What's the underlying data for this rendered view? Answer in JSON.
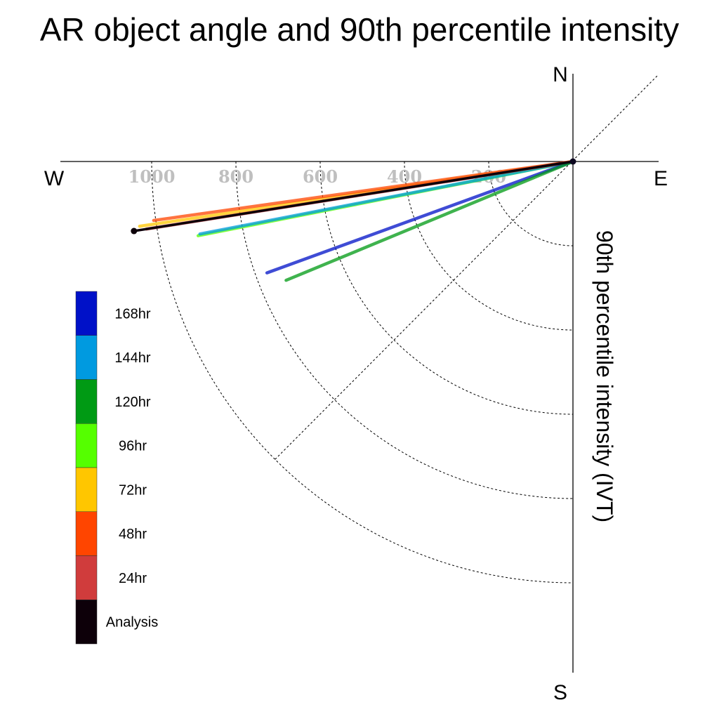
{
  "chart_data": {
    "type": "polar-vector",
    "title": "AR object angle and 90th percentile intensity",
    "ylabel": "90th percentile intensity (IVT)",
    "compass": {
      "north": "N",
      "south": "S",
      "east": "E",
      "west": "W"
    },
    "radial_ticks": [
      "200",
      "400",
      "600",
      "800",
      "1000"
    ],
    "rmax": 1000,
    "legend": [
      {
        "label": "168hr",
        "color": "#0011c8"
      },
      {
        "label": "144hr",
        "color": "#009ae0"
      },
      {
        "label": "120hr",
        "color": "#009a14"
      },
      {
        "label": "96hr",
        "color": "#55ff00"
      },
      {
        "label": "72hr",
        "color": "#ffc600"
      },
      {
        "label": "48hr",
        "color": "#ff4500"
      },
      {
        "label": "24hr",
        "color": "#d03c3c"
      },
      {
        "label": "Analysis",
        "color": "#0d0009"
      }
    ],
    "series": [
      {
        "name": "96hr",
        "color": "#55ff00",
        "angle_deg": 258.8,
        "value": 907
      },
      {
        "name": "144hr",
        "color": "#009ae0",
        "angle_deg": 259.0,
        "value": 902
      },
      {
        "name": "72hr",
        "color": "#ffc600",
        "angle_deg": 261.5,
        "value": 1040
      },
      {
        "name": "48hr",
        "color": "#ff4500",
        "angle_deg": 262.0,
        "value": 1005
      },
      {
        "name": "24hr",
        "color": "#d03c3c",
        "angle_deg": 261.0,
        "value": 1025
      },
      {
        "name": "168hr",
        "color": "#0011c8",
        "angle_deg": 250.0,
        "value": 773
      },
      {
        "name": "120hr",
        "color": "#009a14",
        "angle_deg": 247.5,
        "value": 737
      },
      {
        "name": "Analysis",
        "color": "#0d0009",
        "angle_deg": 261.0,
        "value": 1055
      }
    ]
  }
}
